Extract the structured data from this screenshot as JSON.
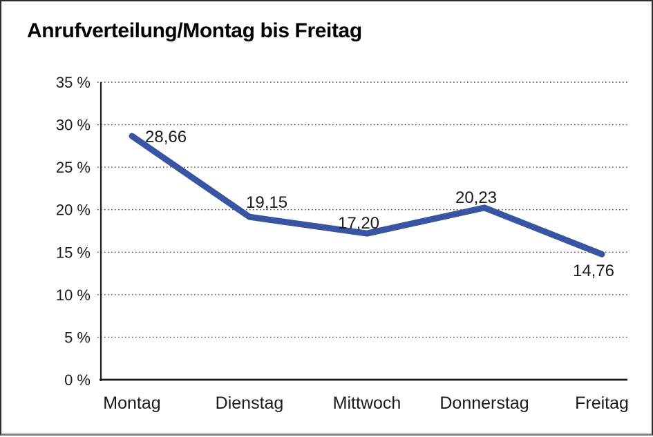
{
  "chart_data": {
    "type": "line",
    "title": "Anrufverteilung/Montag bis Freitag",
    "categories": [
      "Montag",
      "Dienstag",
      "Mittwoch",
      "Donnerstag",
      "Freitag"
    ],
    "series": [
      {
        "name": "Anrufverteilung",
        "values": [
          28.66,
          19.15,
          17.2,
          20.23,
          14.76
        ]
      }
    ],
    "data_labels": [
      "28,66",
      "19,15",
      "17,20",
      "20,23",
      "14,76"
    ],
    "xlabel": "",
    "ylabel": "",
    "ylim": [
      0,
      35
    ],
    "y_step": 5,
    "y_tick_labels": [
      "0 %",
      "5 %",
      "10 %",
      "15 %",
      "20 %",
      "25 %",
      "30 %",
      "35 %"
    ],
    "grid": "horizontal-dotted",
    "legend": "none",
    "colors": {
      "line": "#3954a3",
      "axis": "#1a1a1a",
      "gridline": "#4d4d4d",
      "text": "#1a1a1a",
      "title": "#000000"
    }
  }
}
